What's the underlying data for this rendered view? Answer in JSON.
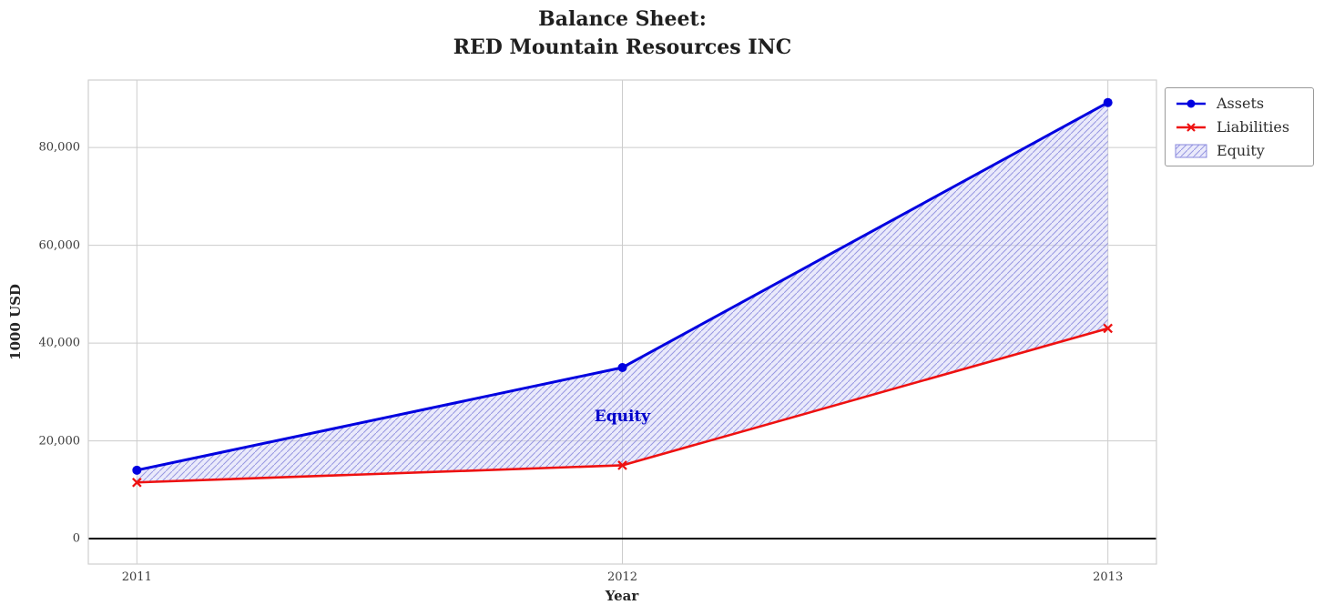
{
  "title": {
    "line1": "Balance Sheet:",
    "line2": "RED Mountain Resources INC"
  },
  "chart_data": {
    "type": "line",
    "x": [
      2011,
      2012,
      2013
    ],
    "xlim": [
      2010.9,
      2013.1
    ],
    "ylim": [
      -5200,
      93800
    ],
    "series": [
      {
        "name": "Assets",
        "values": [
          14000,
          35000,
          89200
        ],
        "color": "#0000e0",
        "marker": "circle"
      },
      {
        "name": "Liabilities",
        "values": [
          11500,
          15000,
          43000
        ],
        "color": "#ee1111",
        "marker": "x"
      }
    ],
    "equity_area": {
      "name": "Equity",
      "between": [
        "Assets",
        "Liabilities"
      ],
      "derived_values": [
        2500,
        20000,
        46200
      ],
      "fill": "#ccccf5",
      "hatch": "#8888dd"
    },
    "annotation": {
      "text": "Equity",
      "x": 2012,
      "y": 25000,
      "color": "#0000cc"
    },
    "xlabel": "Year",
    "ylabel": "1000 USD",
    "xticks": [
      {
        "v": 2011,
        "label": "2011"
      },
      {
        "v": 2012,
        "label": "2012"
      },
      {
        "v": 2013,
        "label": "2013"
      }
    ],
    "yticks": [
      {
        "v": 0,
        "label": "0"
      },
      {
        "v": 20000,
        "label": "20,000"
      },
      {
        "v": 40000,
        "label": "40,000"
      },
      {
        "v": 60000,
        "label": "60,000"
      },
      {
        "v": 80000,
        "label": "80,000"
      }
    ],
    "zero_line": true,
    "grid": true,
    "legend": {
      "position": "upper right",
      "items": [
        "Assets",
        "Liabilities",
        "Equity"
      ]
    }
  }
}
